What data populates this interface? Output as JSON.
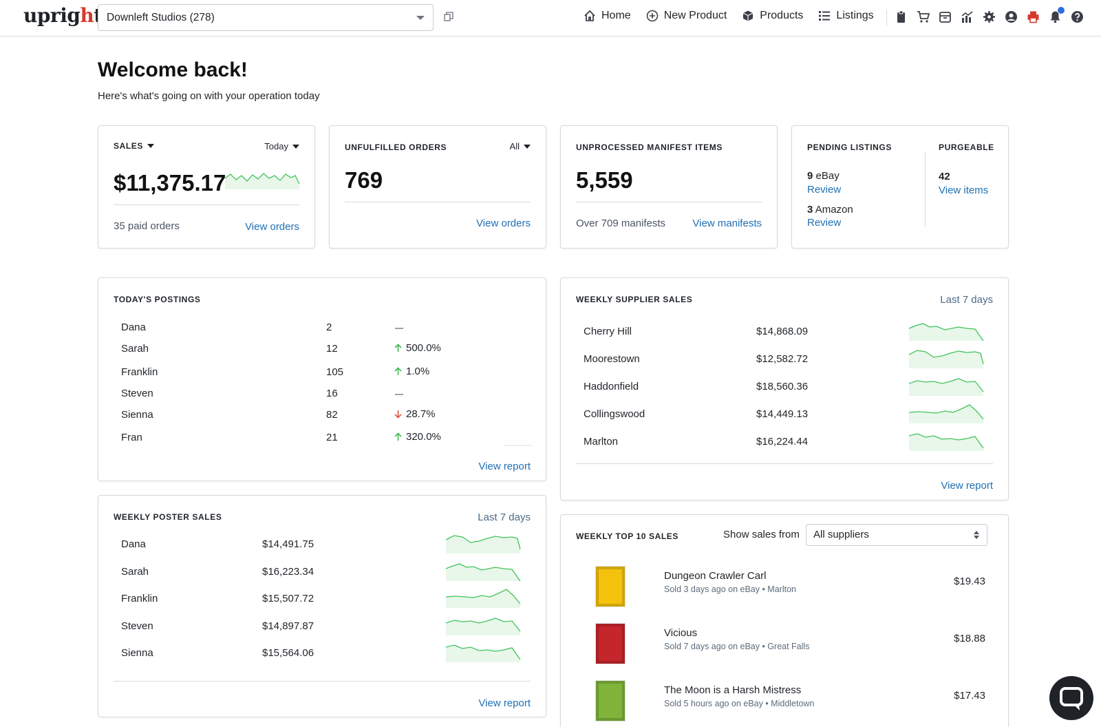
{
  "brand": {
    "logo_text": "upright"
  },
  "store": {
    "name": "Downleft Studios (278)"
  },
  "nav": {
    "links": [
      "Home",
      "New Product",
      "Products",
      "Listings"
    ]
  },
  "header": {
    "title": "Welcome back!",
    "subtitle": "Here's what's going on with your operation today"
  },
  "sales_card": {
    "label": "SALES",
    "period": "Today",
    "amount": "$11,375.17",
    "paid_orders": "35 paid orders",
    "link": "View orders"
  },
  "unfulfilled_card": {
    "label": "UNFULFILLED ORDERS",
    "filter": "All",
    "count": "769",
    "link": "View orders"
  },
  "manifest_card": {
    "label": "UNPROCESSED MANIFEST ITEMS",
    "count": "5,559",
    "sub": "Over 709 manifests",
    "link": "View manifests"
  },
  "pending_card": {
    "label": "PENDING LISTINGS",
    "ebay_count": "9",
    "ebay_label": "eBay",
    "ebay_link": "Review",
    "amazon_count": "3",
    "amazon_label": "Amazon",
    "amazon_link": "Review",
    "purge_label": "PURGEABLE",
    "purge_count": "42",
    "purge_link": "View items"
  },
  "postings": {
    "label": "TODAY'S POSTINGS",
    "rows": [
      {
        "name": "Dana",
        "count": "2",
        "dir": "none",
        "change": ""
      },
      {
        "name": "Sarah",
        "count": "12",
        "dir": "up",
        "change": "500.0%"
      },
      {
        "name": "Franklin",
        "count": "105",
        "dir": "up",
        "change": "1.0%"
      },
      {
        "name": "Steven",
        "count": "16",
        "dir": "none",
        "change": ""
      },
      {
        "name": "Sienna",
        "count": "82",
        "dir": "down",
        "change": "28.7%"
      },
      {
        "name": "Fran",
        "count": "21",
        "dir": "up",
        "change": "320.0%"
      }
    ],
    "link": "View report"
  },
  "poster_sales": {
    "label": "WEEKLY POSTER SALES",
    "period": "Last 7 days",
    "rows": [
      {
        "name": "Dana",
        "amount": "$14,491.75"
      },
      {
        "name": "Sarah",
        "amount": "$16,223.34"
      },
      {
        "name": "Franklin",
        "amount": "$15,507.72"
      },
      {
        "name": "Steven",
        "amount": "$14,897.87"
      },
      {
        "name": "Sienna",
        "amount": "$15,564.06"
      }
    ],
    "link": "View report"
  },
  "supplier_sales": {
    "label": "WEEKLY SUPPLIER SALES",
    "period": "Last 7 days",
    "rows": [
      {
        "name": "Cherry Hill",
        "amount": "$14,868.09"
      },
      {
        "name": "Moorestown",
        "amount": "$12,582.72"
      },
      {
        "name": "Haddonfield",
        "amount": "$18,560.36"
      },
      {
        "name": "Collingswood",
        "amount": "$14,449.13"
      },
      {
        "name": "Marlton",
        "amount": "$16,224.44"
      }
    ],
    "link": "View report"
  },
  "top10": {
    "label": "WEEKLY TOP 10 SALES",
    "filter_label": "Show sales from",
    "filter_value": "All suppliers",
    "items": [
      {
        "title": "Dungeon Crawler Carl",
        "sub": "Sold 3 days ago on eBay • Marlton",
        "price": "$19.43",
        "cover_color": "#f4c20d"
      },
      {
        "title": "Vicious",
        "sub": "Sold 7 days ago on eBay • Great Falls",
        "price": "$18.88",
        "cover_color": "#c4262b"
      },
      {
        "title": "The Moon is a Harsh Mistress",
        "sub": "Sold 5 hours ago on eBay • Middletown",
        "price": "$17.43",
        "cover_color": "#7fb33a"
      }
    ]
  },
  "colors": {
    "link": "#1f6fb3",
    "spark_line": "#3fc35a",
    "spark_fill": "#e8f7ea",
    "up": "#3fb950",
    "down": "#e5533d",
    "border": "#d6d9dd"
  }
}
